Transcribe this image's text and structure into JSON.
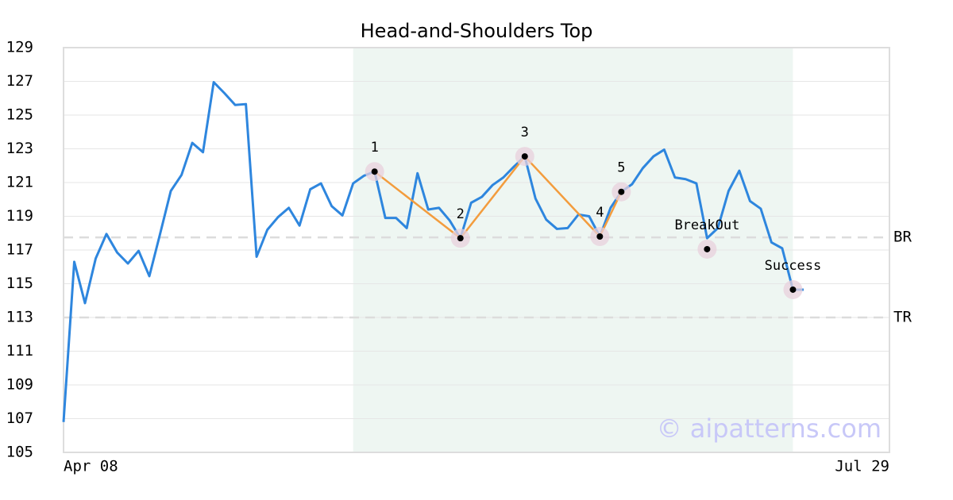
{
  "chart_data": {
    "type": "line",
    "title": "Head-and-Shoulders Top",
    "categories": [
      "Apr 08",
      null,
      null,
      null,
      null,
      null,
      null,
      null,
      null,
      null,
      null,
      null,
      null,
      null,
      null,
      null,
      null,
      null,
      null,
      null,
      null,
      null,
      null,
      null,
      null,
      null,
      null,
      null,
      null,
      null,
      null,
      null,
      null,
      null,
      null,
      null,
      null,
      null,
      null,
      null,
      null,
      null,
      null,
      null,
      null,
      null,
      null,
      null,
      null,
      null,
      null,
      null,
      null,
      null,
      null,
      null,
      null,
      null,
      null,
      null,
      null,
      null,
      null,
      null,
      null,
      null,
      null,
      null,
      null,
      null,
      null,
      null,
      null,
      null,
      null,
      null,
      null,
      "Jul 29"
    ],
    "series": [
      {
        "color": "#2e86de",
        "values": [
          106.8,
          116.3,
          113.85,
          116.5,
          117.95,
          116.85,
          116.2,
          116.95,
          115.45,
          117.95,
          120.5,
          121.45,
          123.35,
          122.8,
          126.95,
          126.3,
          125.6,
          125.65,
          116.6,
          118.2,
          118.95,
          119.5,
          118.45,
          120.6,
          120.95,
          119.6,
          119.05,
          120.95,
          121.4,
          121.65,
          118.9,
          118.9,
          118.3,
          121.55,
          119.4,
          119.5,
          118.75,
          117.7,
          119.8,
          120.15,
          120.85,
          121.3,
          121.95,
          122.55,
          120.05,
          118.8,
          118.25,
          118.3,
          119.1,
          119.0,
          117.8,
          119.5,
          120.45,
          120.9,
          121.85,
          122.55,
          122.95,
          121.3,
          121.2,
          120.95,
          117.7,
          118.3,
          120.5,
          121.7,
          119.9,
          119.45,
          117.45,
          117.1,
          114.65,
          114.65,
          null,
          null,
          null,
          null,
          null,
          null,
          null,
          null
        ]
      }
    ],
    "pattern_line": {
      "color": "#f39c3d",
      "x": [
        29,
        37,
        43,
        50,
        52
      ],
      "values": [
        121.65,
        117.7,
        122.55,
        117.8,
        120.45
      ]
    },
    "markers": {
      "color": "#e8d0dc",
      "labels": [
        "1",
        "2",
        "3",
        "4",
        "5",
        "BreakOut",
        "Success"
      ],
      "x": [
        29,
        37,
        43,
        50,
        52,
        60,
        68
      ],
      "values": [
        121.65,
        117.7,
        122.55,
        117.8,
        120.45,
        117.05,
        114.65
      ]
    },
    "reference_lines": [
      {
        "label": "BR",
        "value": 117.75
      },
      {
        "label": "TR",
        "value": 113
      }
    ],
    "shade": {
      "color": "#eef6f2",
      "x": [
        27,
        68
      ]
    },
    "watermark": "© aipatterns.com",
    "ylim": [
      105,
      129
    ],
    "yticks": [
      105,
      107,
      109,
      111,
      113,
      115,
      117,
      119,
      121,
      123,
      125,
      127,
      129
    ],
    "grid": true
  }
}
